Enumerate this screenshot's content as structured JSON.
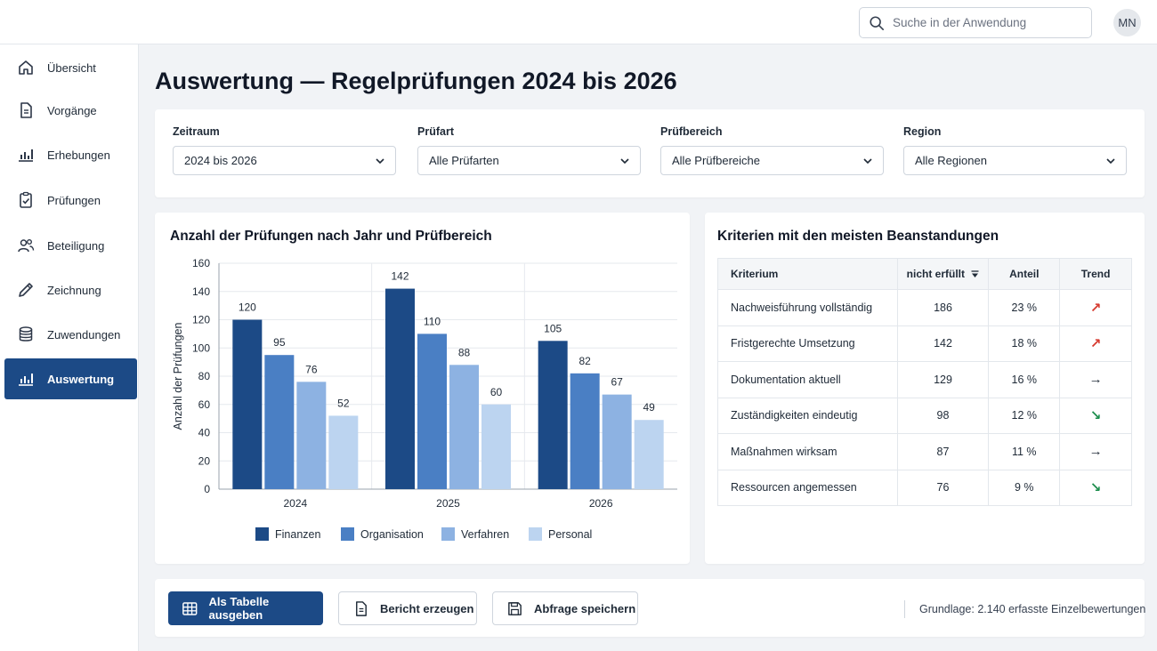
{
  "header": {
    "search_placeholder": "Suche in der Anwendung",
    "avatar_initials": "MN"
  },
  "sidebar": {
    "items": [
      {
        "label": "Übersicht",
        "icon": "home-icon",
        "active": false
      },
      {
        "label": "Vorgänge",
        "icon": "document-icon",
        "active": false
      },
      {
        "label": "Erhebungen",
        "icon": "bar-chart-icon",
        "active": false
      },
      {
        "label": "Prüfungen",
        "icon": "clipboard-check-icon",
        "active": false
      },
      {
        "label": "Beteiligung",
        "icon": "users-icon",
        "active": false
      },
      {
        "label": "Zeichnung",
        "icon": "pencil-icon",
        "active": false
      },
      {
        "label": "Zuwendungen",
        "icon": "database-icon",
        "active": false
      },
      {
        "label": "Auswertung",
        "icon": "bar-chart-icon",
        "active": true
      }
    ]
  },
  "page": {
    "title": "Auswertung — Regelprüfungen 2024 bis 2026"
  },
  "filters": [
    {
      "label": "Zeitraum",
      "value": "2024 bis 2026"
    },
    {
      "label": "Prüfart",
      "value": "Alle Prüfarten"
    },
    {
      "label": "Prüfbereich",
      "value": "Alle Prüfbereiche"
    },
    {
      "label": "Region",
      "value": "Alle Regionen"
    }
  ],
  "chart_card": {
    "title": "Anzahl der Prüfungen nach Jahr und Prüfbereich"
  },
  "chart_data": {
    "type": "bar",
    "title": "Anzahl der Prüfungen nach Jahr und Prüfbereich",
    "xlabel": "",
    "ylabel": "Anzahl der Prüfungen",
    "categories": [
      "2024",
      "2025",
      "2026"
    ],
    "ylim": [
      0,
      160
    ],
    "yticks": [
      0,
      20,
      40,
      60,
      80,
      100,
      120,
      140,
      160
    ],
    "grid": true,
    "legend": "bottom",
    "series": [
      {
        "name": "Finanzen",
        "color": "#1c4a86",
        "values": [
          120,
          142,
          105
        ]
      },
      {
        "name": "Organisation",
        "color": "#4a7fc4",
        "values": [
          95,
          110,
          82
        ]
      },
      {
        "name": "Verfahren",
        "color": "#8db2e2",
        "values": [
          76,
          88,
          67
        ]
      },
      {
        "name": "Personal",
        "color": "#bcd4f0",
        "values": [
          52,
          60,
          49
        ]
      }
    ]
  },
  "criteria": {
    "title": "Kriterien mit den meisten Beanstandungen",
    "headers": {
      "criterion": "Kriterium",
      "count": "nicht erfüllt",
      "share": "Anteil",
      "trend": "Trend"
    },
    "rows": [
      {
        "criterion": "Nachweisführung vollständig",
        "count": "186",
        "share": "23 %",
        "trend": "↗",
        "trend_type": "up"
      },
      {
        "criterion": "Fristgerechte Umsetzung",
        "count": "142",
        "share": "18 %",
        "trend": "↗",
        "trend_type": "up"
      },
      {
        "criterion": "Dokumentation aktuell",
        "count": "129",
        "share": "16 %",
        "trend": "→",
        "trend_type": "flat"
      },
      {
        "criterion": "Zuständigkeiten eindeutig",
        "count": "98",
        "share": "12 %",
        "trend": "↘",
        "trend_type": "down"
      },
      {
        "criterion": "Maßnahmen wirksam",
        "count": "87",
        "share": "11 %",
        "trend": "→",
        "trend_type": "flat"
      },
      {
        "criterion": "Ressourcen angemessen",
        "count": "76",
        "share": "9 %",
        "trend": "↘",
        "trend_type": "down"
      }
    ]
  },
  "actions": {
    "table_label": "Als Tabelle ausgeben",
    "report_label": "Bericht erzeugen",
    "save_label": "Abfrage speichern",
    "basis_text": "Grundlage: 2.140 erfasste Einzelbewertungen"
  }
}
